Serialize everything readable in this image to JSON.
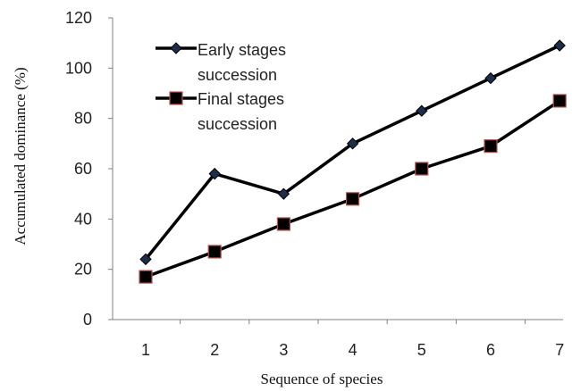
{
  "chart_data": {
    "type": "line",
    "title": "",
    "xlabel": "Sequence of species",
    "ylabel": "Accumulated dominance (%)",
    "x": [
      1,
      2,
      3,
      4,
      5,
      6,
      7
    ],
    "x_tick_labels": [
      "1",
      "2",
      "3",
      "4",
      "5",
      "6",
      "7"
    ],
    "ylim": [
      0,
      120
    ],
    "y_ticks": [
      0,
      20,
      40,
      60,
      80,
      100,
      120
    ],
    "y_tick_labels": [
      "0",
      "20",
      "40",
      "60",
      "80",
      "100",
      "120"
    ],
    "grid": false,
    "legend_position": "top-left",
    "series": [
      {
        "name_lines": [
          "Early stages",
          "succession"
        ],
        "values": [
          24,
          58,
          50,
          70,
          83,
          96,
          109
        ],
        "marker": "diamond",
        "line_color": "#000000",
        "marker_fill": "#1c2e4a"
      },
      {
        "name_lines": [
          "Final stages",
          "succession"
        ],
        "values": [
          17,
          27,
          38,
          48,
          60,
          69,
          87
        ],
        "marker": "square",
        "line_color": "#000000",
        "marker_fill": "#000000",
        "marker_edge": "#c0504d"
      }
    ]
  }
}
